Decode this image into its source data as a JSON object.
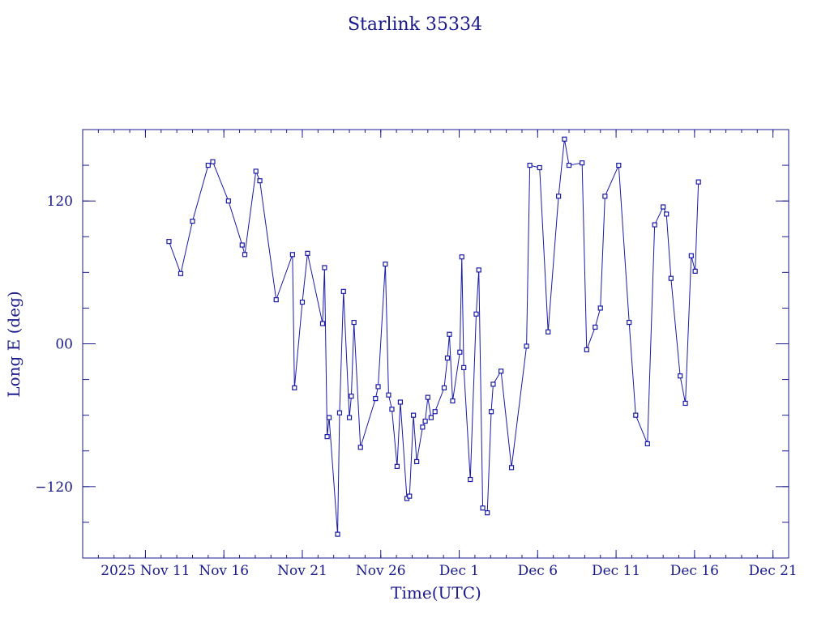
{
  "chart_data": {
    "type": "line",
    "title": "Starlink 35334",
    "xlabel": "Time(UTC)",
    "ylabel": "Long E (deg)",
    "x_axis": {
      "unit": "days",
      "range": [
        "2025-11-07",
        "2025-12-22"
      ],
      "tick_labels": [
        {
          "date": "2025-11-11",
          "label": "2025 Nov 11"
        },
        {
          "date": "2025-11-16",
          "label": "Nov 16"
        },
        {
          "date": "2025-11-21",
          "label": "Nov 21"
        },
        {
          "date": "2025-11-26",
          "label": "Nov 26"
        },
        {
          "date": "2025-12-01",
          "label": "Dec  1"
        },
        {
          "date": "2025-12-06",
          "label": "Dec  6"
        },
        {
          "date": "2025-12-11",
          "label": "Dec 11"
        },
        {
          "date": "2025-12-16",
          "label": "Dec 16"
        },
        {
          "date": "2025-12-21",
          "label": "Dec 21"
        }
      ]
    },
    "y_axis": {
      "range": [
        -180,
        180
      ],
      "tick_labels": [
        {
          "value": 120,
          "label": "120"
        },
        {
          "value": 0,
          "label": "00"
        },
        {
          "value": -120,
          "label": "−120"
        }
      ]
    },
    "series": [
      {
        "color": "#1a1aa8",
        "marker": "square",
        "x": [
          "2025-11-12T12:00",
          "2025-11-13T06:00",
          "2025-11-14T00:00",
          "2025-11-15T00:00",
          "2025-11-15T07:00",
          "2025-11-16T07:00",
          "2025-11-17T04:00",
          "2025-11-17T08:00",
          "2025-11-18T01:00",
          "2025-11-18T07:00",
          "2025-11-19T08:00",
          "2025-11-20T09:00",
          "2025-11-20T12:00",
          "2025-11-21T00:00",
          "2025-11-21T08:00",
          "2025-11-22T07:00",
          "2025-11-22T10:00",
          "2025-11-22T14:00",
          "2025-11-22T17:00",
          "2025-11-23T06:00",
          "2025-11-23T09:00",
          "2025-11-23T15:00",
          "2025-11-24T00:00",
          "2025-11-24T03:00",
          "2025-11-24T07:00",
          "2025-11-24T17:00",
          "2025-11-25T16:00",
          "2025-11-25T20:00",
          "2025-11-26T07:00",
          "2025-11-26T12:00",
          "2025-11-26T17:00",
          "2025-11-27T01:00",
          "2025-11-27T06:00",
          "2025-11-27T16:00",
          "2025-11-27T20:00",
          "2025-11-28T02:00",
          "2025-11-28T07:00",
          "2025-11-28T16:00",
          "2025-11-28T20:00",
          "2025-11-29T00:00",
          "2025-11-29T05:00",
          "2025-11-29T11:00",
          "2025-11-30T01:00",
          "2025-11-30T06:00",
          "2025-11-30T09:00",
          "2025-11-30T14:00",
          "2025-12-01T01:00",
          "2025-12-01T04:00",
          "2025-12-01T07:00",
          "2025-12-01T17:00",
          "2025-12-02T02:00",
          "2025-12-02T06:00",
          "2025-12-02T12:00",
          "2025-12-02T19:00",
          "2025-12-03T01:00",
          "2025-12-03T04:00",
          "2025-12-03T16:00",
          "2025-12-04T08:00",
          "2025-12-05T07:00",
          "2025-12-05T12:00",
          "2025-12-06T03:00",
          "2025-12-06T16:00",
          "2025-12-07T08:00",
          "2025-12-07T17:00",
          "2025-12-08T00:00",
          "2025-12-08T20:00",
          "2025-12-09T03:00",
          "2025-12-09T16:00",
          "2025-12-10T00:00",
          "2025-12-10T07:00",
          "2025-12-11T04:00",
          "2025-12-11T20:00",
          "2025-12-12T06:00",
          "2025-12-13T00:00",
          "2025-12-13T11:00",
          "2025-12-14T00:00",
          "2025-12-14T05:00",
          "2025-12-14T12:00",
          "2025-12-15T02:00",
          "2025-12-15T10:00",
          "2025-12-15T19:00",
          "2025-12-16T01:00",
          "2025-12-16T06:00"
        ],
        "y": [
          86,
          59,
          103,
          150,
          153,
          120,
          83,
          75,
          145,
          137,
          37,
          75,
          -37,
          35,
          76,
          17,
          64,
          -78,
          -62,
          -160,
          -58,
          44,
          -62,
          -44,
          18,
          -87,
          -46,
          -36,
          67,
          -43,
          -55,
          -103,
          -49,
          -130,
          -128,
          -60,
          -99,
          -70,
          -65,
          -45,
          -62,
          -57,
          -37,
          -12,
          8,
          -48,
          -7,
          73,
          -20,
          -114,
          25,
          62,
          -138,
          -142,
          -57,
          -34,
          -23,
          -104,
          -2,
          150,
          148,
          10,
          124,
          172,
          150,
          152,
          -5,
          14,
          30,
          124,
          150,
          18,
          -60,
          -84,
          100,
          115,
          109,
          55,
          -27,
          -50,
          74,
          61,
          136
        ]
      }
    ]
  }
}
